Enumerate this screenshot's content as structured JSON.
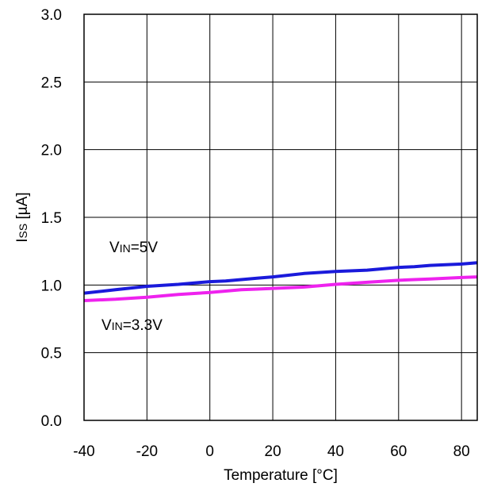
{
  "chart_data": {
    "type": "line",
    "title": "",
    "xlabel": "Temperature [°C]",
    "ylabel": {
      "main": "I",
      "sub": "SS",
      "unit": " [µA]"
    },
    "xlim": [
      -40,
      85
    ],
    "ylim": [
      0,
      3.0
    ],
    "x_ticks": [
      -40,
      -20,
      0,
      20,
      40,
      60,
      80
    ],
    "y_ticks": [
      0.0,
      0.5,
      1.0,
      1.5,
      2.0,
      2.5,
      3.0
    ],
    "x_tick_labels": [
      "-40",
      "-20",
      "0",
      "20",
      "40",
      "60",
      "80"
    ],
    "y_tick_labels": [
      "0.0",
      "0.5",
      "1.0",
      "1.5",
      "2.0",
      "2.5",
      "3.0"
    ],
    "grid": true,
    "series": [
      {
        "color": "#1a1adb",
        "x": [
          -40,
          -30,
          -20,
          -10,
          0,
          5,
          10,
          15,
          20,
          30,
          40,
          50,
          60,
          65,
          70,
          80,
          85
        ],
        "y": [
          0.94,
          0.965,
          0.99,
          1.005,
          1.025,
          1.03,
          1.04,
          1.05,
          1.06,
          1.085,
          1.1,
          1.11,
          1.13,
          1.135,
          1.145,
          1.155,
          1.165
        ]
      },
      {
        "color": "#ee22ee",
        "x": [
          -40,
          -30,
          -20,
          -10,
          0,
          5,
          10,
          15,
          20,
          30,
          40,
          50,
          60,
          65,
          70,
          80,
          85
        ],
        "y": [
          0.885,
          0.895,
          0.91,
          0.93,
          0.945,
          0.955,
          0.965,
          0.97,
          0.975,
          0.985,
          1.005,
          1.02,
          1.035,
          1.04,
          1.045,
          1.055,
          1.06
        ]
      }
    ],
    "annotations": [
      {
        "main": "V",
        "sub": "IN",
        "rest": "=5V"
      },
      {
        "main": "V",
        "sub": "IN",
        "rest": "=3.3V"
      }
    ]
  }
}
